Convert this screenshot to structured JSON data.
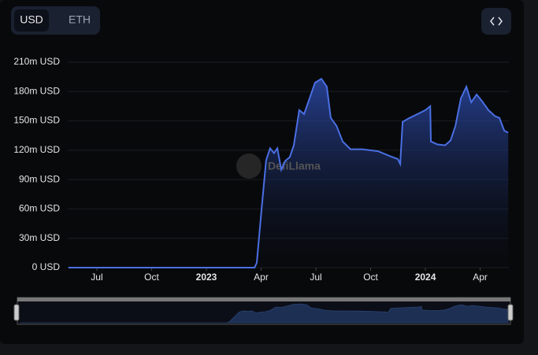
{
  "controls": {
    "currency_options": [
      "USD",
      "ETH"
    ],
    "selected": "USD"
  },
  "chart_data": {
    "type": "area",
    "watermark": "DefiLlama",
    "x": [
      2022.37,
      2023.22,
      2023.23,
      2023.252,
      2023.273,
      2023.291,
      2023.309,
      2023.324,
      2023.342,
      2023.36,
      2023.381,
      2023.399,
      2023.424,
      2023.446,
      2023.471,
      2023.496,
      2023.525,
      2023.55,
      2023.568,
      2023.594,
      2023.622,
      2023.658,
      2023.712,
      2023.784,
      2023.838,
      2023.874,
      2023.885,
      2023.896,
      2023.928,
      2023.964,
      2024.0,
      2024.022,
      2024.025,
      2024.054,
      2024.09,
      2024.115,
      2024.137,
      2024.162,
      2024.187,
      2024.209,
      2024.234,
      2024.259,
      2024.288,
      2024.317,
      2024.338,
      2024.36,
      2024.378
    ],
    "series": [
      {
        "name": "USD",
        "color": "#4a6fe3",
        "values": [
          0,
          0,
          5,
          60,
          110,
          122,
          117,
          122,
          100,
          109,
          113,
          125,
          161,
          157,
          173,
          189,
          193,
          185,
          153,
          145,
          129,
          121,
          121,
          119,
          114,
          111,
          106,
          149,
          153,
          157,
          161,
          165,
          129,
          126,
          125,
          130,
          145,
          173,
          185,
          169,
          177,
          170,
          161,
          155,
          153,
          140,
          138
        ]
      }
    ],
    "xlim": [
      2022.367,
      2024.381
    ],
    "xticks": [
      {
        "value": 2022.5,
        "label": "Jul"
      },
      {
        "value": 2022.75,
        "label": "Oct"
      },
      2023,
      {
        "value": 2023.25,
        "label": "Apr"
      },
      {
        "value": 2023.5,
        "label": "Jul"
      },
      {
        "value": 2023.75,
        "label": "Oct"
      },
      2024,
      {
        "value": 2024.25,
        "label": "Apr"
      }
    ],
    "ylim": [
      0,
      210
    ],
    "yticks": [
      {
        "value": 0,
        "label": "0 USD"
      },
      {
        "value": 30,
        "label": "30m USD"
      },
      {
        "value": 60,
        "label": "60m USD"
      },
      {
        "value": 90,
        "label": "90m USD"
      },
      {
        "value": 120,
        "label": "120m USD"
      },
      {
        "value": 150,
        "label": "150m USD"
      },
      {
        "value": 180,
        "label": "180m USD"
      },
      {
        "value": 210,
        "label": "210m USD"
      }
    ],
    "grid": true
  }
}
